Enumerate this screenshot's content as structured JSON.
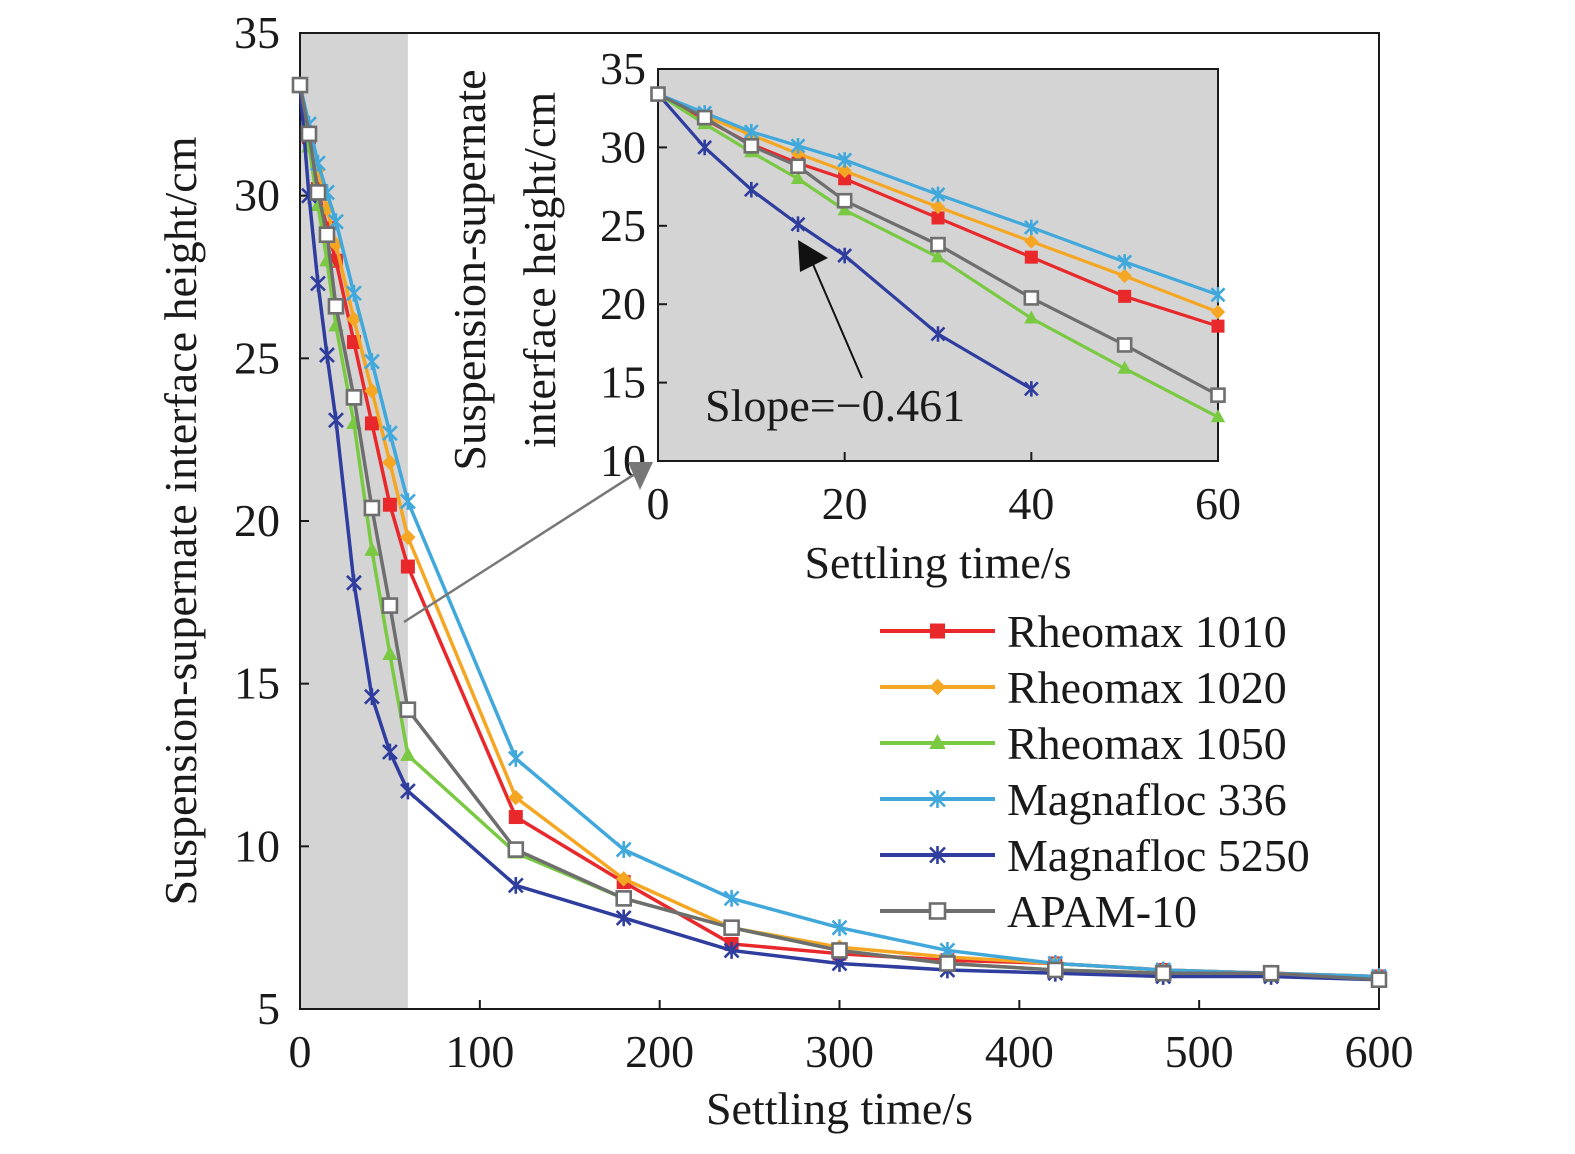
{
  "chart_data": [
    {
      "type": "line",
      "xlabel": "Settling time/s",
      "ylabel": "Suspension-supernate interface height/cm",
      "xlim": [
        0,
        600
      ],
      "ylim": [
        5,
        35
      ],
      "xticks": [
        0,
        100,
        200,
        300,
        400,
        500,
        600
      ],
      "yticks": [
        5,
        10,
        15,
        20,
        25,
        30,
        35
      ],
      "shaded_x_range": [
        0,
        60
      ],
      "legend_position": "lower-right",
      "series": [
        {
          "name": "Rheomax 1010",
          "color": "#e8282b",
          "marker": "square",
          "x": [
            0,
            5,
            10,
            15,
            20,
            30,
            40,
            50,
            60,
            120,
            180,
            240,
            300,
            360,
            420,
            480,
            540,
            600
          ],
          "y": [
            33.4,
            31.8,
            30.2,
            29.0,
            28.0,
            25.5,
            23.0,
            20.5,
            18.6,
            10.9,
            8.9,
            7.0,
            6.7,
            6.5,
            6.4,
            6.2,
            6.1,
            6.0
          ]
        },
        {
          "name": "Rheomax 1020",
          "color": "#f5a623",
          "marker": "diamond",
          "x": [
            0,
            5,
            10,
            15,
            20,
            30,
            40,
            50,
            60,
            120,
            180,
            240,
            300,
            360,
            420,
            480,
            540,
            600
          ],
          "y": [
            33.4,
            32.0,
            30.8,
            29.6,
            28.5,
            26.2,
            24.0,
            21.8,
            19.5,
            11.5,
            9.0,
            7.5,
            6.9,
            6.6,
            6.4,
            6.2,
            6.1,
            6.0
          ]
        },
        {
          "name": "Rheomax 1050",
          "color": "#7ac943",
          "marker": "triangle",
          "x": [
            0,
            5,
            10,
            15,
            20,
            30,
            40,
            50,
            60,
            120,
            180,
            240,
            300,
            360,
            420,
            480,
            540,
            600
          ],
          "y": [
            33.4,
            31.5,
            29.7,
            28.0,
            26.0,
            23.0,
            19.1,
            15.9,
            12.8,
            9.8,
            8.4,
            7.5,
            6.8,
            6.4,
            6.2,
            6.1,
            6.0,
            6.0
          ]
        },
        {
          "name": "Magnafloc 336",
          "color": "#41a8dc",
          "marker": "star",
          "x": [
            0,
            5,
            10,
            15,
            20,
            30,
            40,
            50,
            60,
            120,
            180,
            240,
            300,
            360,
            420,
            480,
            540,
            600
          ],
          "y": [
            33.4,
            32.2,
            31.0,
            30.1,
            29.2,
            27.0,
            24.9,
            22.7,
            20.6,
            12.7,
            9.9,
            8.4,
            7.5,
            6.8,
            6.4,
            6.2,
            6.1,
            6.0
          ]
        },
        {
          "name": "Magnafloc 5250",
          "color": "#2e3d9e",
          "marker": "star",
          "x": [
            0,
            5,
            10,
            15,
            20,
            30,
            40,
            50,
            60,
            120,
            180,
            240,
            300,
            360,
            420,
            480,
            540,
            600
          ],
          "y": [
            33.4,
            30.0,
            27.3,
            25.1,
            23.1,
            18.1,
            14.6,
            12.9,
            11.7,
            8.8,
            7.8,
            6.8,
            6.4,
            6.2,
            6.1,
            6.0,
            6.0,
            5.9
          ]
        },
        {
          "name": "APAM-10",
          "color": "#6e6e6e",
          "marker": "open-square",
          "x": [
            0,
            5,
            10,
            15,
            20,
            30,
            40,
            50,
            60,
            120,
            180,
            240,
            300,
            360,
            420,
            480,
            540,
            600
          ],
          "y": [
            33.4,
            31.9,
            30.1,
            28.8,
            26.6,
            23.8,
            20.4,
            17.4,
            14.2,
            9.9,
            8.4,
            7.5,
            6.8,
            6.4,
            6.2,
            6.1,
            6.1,
            5.9
          ]
        }
      ]
    },
    {
      "type": "line",
      "role": "inset",
      "xlabel": "Settling time/s",
      "ylabel": "Suspension-supernate interface height/cm",
      "xlim": [
        0,
        60
      ],
      "ylim": [
        10,
        35
      ],
      "xticks": [
        0,
        20,
        40,
        60
      ],
      "yticks": [
        10,
        15,
        20,
        25,
        30,
        35
      ],
      "annotation": "Slope=−0.461",
      "series": [
        {
          "name": "Rheomax 1010",
          "color": "#e8282b",
          "marker": "square",
          "x": [
            0,
            5,
            10,
            15,
            20,
            30,
            40,
            50,
            60
          ],
          "y": [
            33.4,
            31.8,
            30.2,
            29.0,
            28.0,
            25.5,
            23.0,
            20.5,
            18.6
          ]
        },
        {
          "name": "Rheomax 1020",
          "color": "#f5a623",
          "marker": "diamond",
          "x": [
            0,
            5,
            10,
            15,
            20,
            30,
            40,
            50,
            60
          ],
          "y": [
            33.4,
            32.0,
            30.8,
            29.6,
            28.5,
            26.2,
            24.0,
            21.8,
            19.5
          ]
        },
        {
          "name": "Rheomax 1050",
          "color": "#7ac943",
          "marker": "triangle",
          "x": [
            0,
            5,
            10,
            15,
            20,
            30,
            40,
            50,
            60
          ],
          "y": [
            33.4,
            31.5,
            29.7,
            28.0,
            26.0,
            23.0,
            19.1,
            15.9,
            12.8
          ]
        },
        {
          "name": "Magnafloc 336",
          "color": "#41a8dc",
          "marker": "star",
          "x": [
            0,
            5,
            10,
            15,
            20,
            30,
            40,
            50,
            60
          ],
          "y": [
            33.4,
            32.2,
            31.0,
            30.1,
            29.2,
            27.0,
            24.9,
            22.7,
            20.6
          ]
        },
        {
          "name": "Magnafloc 5250",
          "color": "#2e3d9e",
          "marker": "star",
          "x": [
            0,
            5,
            10,
            15,
            20,
            30,
            40
          ],
          "y": [
            33.4,
            30.0,
            27.3,
            25.1,
            23.1,
            18.1,
            14.6
          ]
        },
        {
          "name": "APAM-10",
          "color": "#6e6e6e",
          "marker": "open-square",
          "x": [
            0,
            5,
            10,
            15,
            20,
            30,
            40,
            50,
            60
          ],
          "y": [
            33.4,
            31.9,
            30.1,
            28.8,
            26.6,
            23.8,
            20.4,
            17.4,
            14.2
          ]
        }
      ]
    }
  ],
  "colors": {
    "shading": "#d4d4d4",
    "axis": "#1a1a1a",
    "arrow": "#777777"
  }
}
